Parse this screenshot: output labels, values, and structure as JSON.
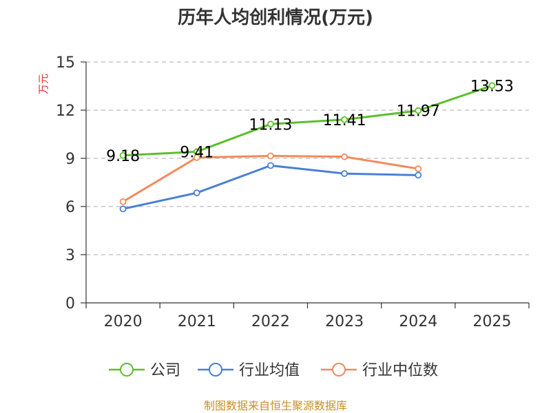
{
  "chart_data": {
    "type": "line",
    "title": "历年人均创利情况(万元)",
    "ylabel": "万元",
    "xlabel": "",
    "categories": [
      "2020",
      "2021",
      "2022",
      "2023",
      "2024",
      "2025"
    ],
    "ylim": [
      0,
      15
    ],
    "yticks": [
      0,
      3,
      6,
      9,
      12,
      15
    ],
    "grid": true,
    "legend_position": "bottom",
    "series": [
      {
        "name": "公司",
        "color": "#5cbf2a",
        "values": [
          9.18,
          9.41,
          11.13,
          11.41,
          11.97,
          13.53
        ],
        "labels": [
          "9.18",
          "9.41",
          "11.13",
          "11.41",
          "11.97",
          "13.53"
        ]
      },
      {
        "name": "行业均值",
        "color": "#4a7fd6",
        "values": [
          5.85,
          6.85,
          8.55,
          8.05,
          7.95,
          null
        ]
      },
      {
        "name": "行业中位数",
        "color": "#f5895a",
        "values": [
          6.3,
          9.05,
          9.15,
          9.1,
          8.35,
          null
        ]
      }
    ]
  },
  "source_text": "制图数据来自恒生聚源数据库"
}
